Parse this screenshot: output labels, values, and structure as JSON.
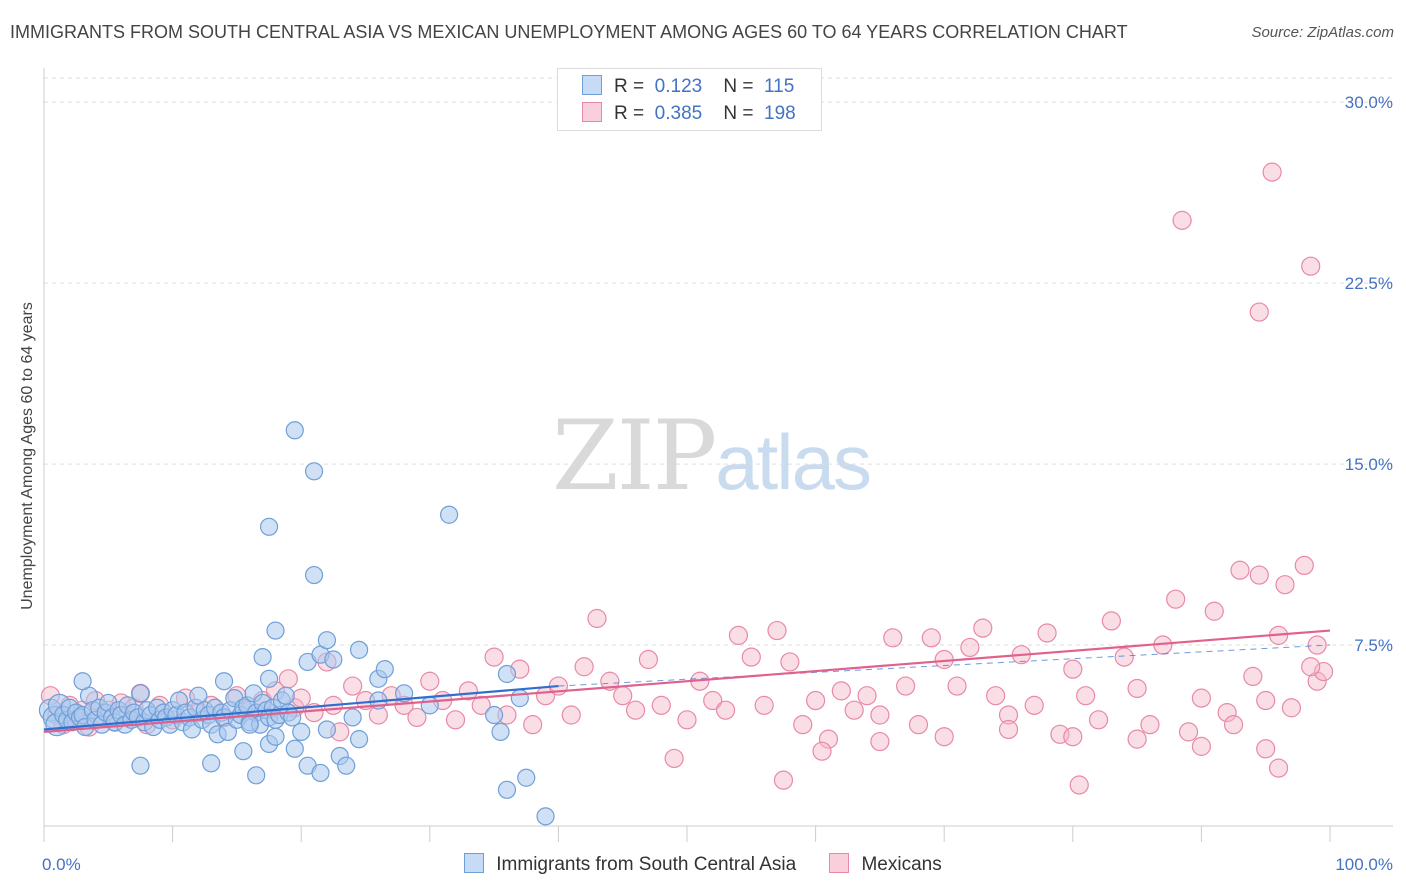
{
  "title": "IMMIGRANTS FROM SOUTH CENTRAL ASIA VS MEXICAN UNEMPLOYMENT AMONG AGES 60 TO 64 YEARS CORRELATION CHART",
  "source": "Source: ZipAtlas.com",
  "watermark": {
    "zip": "ZIP",
    "atlas": "atlas"
  },
  "legend": {
    "r_label": "R =",
    "n_label": "N =",
    "items": [
      {
        "name": "Immigrants from South Central Asia",
        "r": "0.123",
        "n": "115"
      },
      {
        "name": "Mexicans",
        "r": "0.385",
        "n": "198"
      }
    ]
  },
  "colors": {
    "blue_fill": "#a9c8ee",
    "blue_stroke": "#6f9fd8",
    "blue_line": "#2f6fd0",
    "pink_fill": "#f4b6c8",
    "pink_stroke": "#e889a8",
    "pink_line": "#e0628c",
    "tick_text": "#4472c4",
    "grid": "#dddddd"
  },
  "chart_data": {
    "type": "scatter",
    "ylabel": "Unemployment Among Ages 60 to 64 years",
    "xlabel": "",
    "xlim": [
      0,
      100
    ],
    "ylim": [
      0,
      31
    ],
    "x_tick_labels": [
      "0.0%",
      "100.0%"
    ],
    "y_ticks": [
      7.5,
      15.0,
      22.5,
      30.0
    ],
    "y_tick_labels": [
      "7.5%",
      "15.0%",
      "22.5%",
      "30.0%"
    ],
    "grid": true,
    "legend_position": "top-center",
    "series": [
      {
        "name": "Immigrants from South Central Asia",
        "trend": {
          "x": [
            0,
            40
          ],
          "y": [
            4.0,
            5.8
          ],
          "dashed_to": [
            100,
            7.5
          ]
        },
        "points": [
          [
            0.5,
            4.8
          ],
          [
            0.8,
            4.5
          ],
          [
            1.0,
            4.2
          ],
          [
            1.2,
            5.0
          ],
          [
            1.5,
            4.6
          ],
          [
            1.8,
            4.4
          ],
          [
            2.0,
            4.9
          ],
          [
            2.2,
            4.3
          ],
          [
            2.5,
            4.7
          ],
          [
            2.8,
            4.5
          ],
          [
            3.0,
            4.6
          ],
          [
            3.2,
            4.1
          ],
          [
            3.5,
            5.4
          ],
          [
            3.8,
            4.8
          ],
          [
            4.0,
            4.4
          ],
          [
            4.3,
            4.9
          ],
          [
            4.5,
            4.2
          ],
          [
            4.8,
            4.7
          ],
          [
            5.0,
            5.1
          ],
          [
            5.3,
            4.5
          ],
          [
            5.5,
            4.3
          ],
          [
            5.8,
            4.8
          ],
          [
            6.0,
            4.6
          ],
          [
            6.3,
            4.2
          ],
          [
            6.5,
            5.0
          ],
          [
            6.8,
            4.4
          ],
          [
            7.0,
            4.7
          ],
          [
            7.3,
            4.5
          ],
          [
            7.5,
            5.5
          ],
          [
            7.8,
            4.3
          ],
          [
            8.0,
            4.8
          ],
          [
            8.3,
            4.6
          ],
          [
            8.5,
            4.1
          ],
          [
            8.8,
            4.9
          ],
          [
            9.0,
            4.4
          ],
          [
            9.3,
            4.7
          ],
          [
            9.5,
            4.5
          ],
          [
            9.8,
            4.2
          ],
          [
            10.0,
            4.8
          ],
          [
            10.3,
            4.6
          ],
          [
            10.5,
            5.2
          ],
          [
            10.8,
            4.3
          ],
          [
            11.0,
            4.7
          ],
          [
            11.3,
            4.5
          ],
          [
            11.5,
            4.0
          ],
          [
            11.8,
            4.9
          ],
          [
            12.0,
            5.4
          ],
          [
            12.3,
            4.4
          ],
          [
            12.5,
            4.8
          ],
          [
            12.8,
            4.6
          ],
          [
            13.0,
            4.2
          ],
          [
            13.3,
            4.9
          ],
          [
            13.5,
            3.8
          ],
          [
            13.8,
            4.7
          ],
          [
            14.0,
            4.5
          ],
          [
            14.3,
            3.9
          ],
          [
            14.5,
            4.8
          ],
          [
            14.8,
            5.3
          ],
          [
            15.0,
            4.4
          ],
          [
            15.3,
            4.6
          ],
          [
            15.5,
            4.9
          ],
          [
            15.8,
            5.0
          ],
          [
            16.0,
            4.3
          ],
          [
            16.3,
            5.5
          ],
          [
            16.5,
            4.7
          ],
          [
            16.8,
            4.2
          ],
          [
            17.0,
            5.1
          ],
          [
            17.3,
            4.8
          ],
          [
            17.5,
            4.5
          ],
          [
            17.8,
            4.9
          ],
          [
            18.0,
            4.4
          ],
          [
            18.3,
            4.6
          ],
          [
            18.5,
            5.2
          ],
          [
            18.8,
            5.4
          ],
          [
            19.0,
            4.7
          ],
          [
            19.3,
            4.5
          ],
          [
            3.0,
            6.0
          ],
          [
            14.0,
            6.0
          ],
          [
            17.5,
            6.1
          ],
          [
            7.5,
            2.5
          ],
          [
            13.0,
            2.6
          ],
          [
            15.5,
            3.1
          ],
          [
            16.5,
            2.1
          ],
          [
            17.5,
            3.4
          ],
          [
            19.5,
            3.2
          ],
          [
            20.5,
            2.5
          ],
          [
            21.5,
            2.2
          ],
          [
            23.0,
            2.9
          ],
          [
            23.5,
            2.5
          ],
          [
            24.5,
            3.6
          ],
          [
            16.0,
            4.2
          ],
          [
            18.0,
            3.7
          ],
          [
            20.0,
            3.9
          ],
          [
            22.0,
            4.0
          ],
          [
            24.0,
            4.5
          ],
          [
            26.0,
            5.2
          ],
          [
            28.0,
            5.5
          ],
          [
            30.0,
            5.0
          ],
          [
            35.0,
            4.6
          ],
          [
            17.0,
            7.0
          ],
          [
            18.0,
            8.1
          ],
          [
            20.5,
            6.8
          ],
          [
            21.5,
            7.1
          ],
          [
            22.5,
            6.9
          ],
          [
            24.5,
            7.3
          ],
          [
            26.0,
            6.1
          ],
          [
            26.5,
            6.5
          ],
          [
            36.0,
            6.3
          ],
          [
            37.0,
            5.3
          ],
          [
            17.5,
            12.4
          ],
          [
            19.5,
            16.4
          ],
          [
            21.0,
            14.7
          ],
          [
            21.0,
            10.4
          ],
          [
            31.5,
            12.9
          ],
          [
            22.0,
            7.7
          ],
          [
            35.5,
            3.9
          ],
          [
            36.0,
            1.5
          ],
          [
            37.5,
            2.0
          ],
          [
            39.0,
            0.4
          ]
        ]
      },
      {
        "name": "Mexicans",
        "trend": {
          "x": [
            0,
            100
          ],
          "y": [
            3.9,
            8.1
          ]
        },
        "points": [
          [
            0.5,
            5.4
          ],
          [
            1.0,
            4.6
          ],
          [
            1.5,
            4.2
          ],
          [
            2.0,
            5.0
          ],
          [
            2.5,
            4.4
          ],
          [
            3.0,
            4.8
          ],
          [
            3.5,
            4.1
          ],
          [
            4.0,
            5.2
          ],
          [
            4.5,
            4.5
          ],
          [
            5.0,
            4.8
          ],
          [
            5.5,
            4.3
          ],
          [
            6.0,
            5.1
          ],
          [
            6.5,
            4.6
          ],
          [
            7.0,
            4.9
          ],
          [
            7.5,
            5.5
          ],
          [
            8.0,
            4.2
          ],
          [
            9.0,
            5.0
          ],
          [
            10.0,
            4.4
          ],
          [
            11.0,
            5.3
          ],
          [
            12.0,
            4.7
          ],
          [
            13.0,
            5.0
          ],
          [
            14.0,
            4.5
          ],
          [
            15.0,
            5.4
          ],
          [
            16.0,
            4.8
          ],
          [
            17.0,
            5.2
          ],
          [
            18.0,
            5.6
          ],
          [
            19.0,
            6.1
          ],
          [
            19.5,
            4.9
          ],
          [
            20.0,
            5.3
          ],
          [
            21.0,
            4.7
          ],
          [
            22.0,
            6.8
          ],
          [
            22.5,
            5.0
          ],
          [
            23.0,
            3.9
          ],
          [
            24.0,
            5.8
          ],
          [
            25.0,
            5.2
          ],
          [
            26.0,
            4.6
          ],
          [
            27.0,
            5.4
          ],
          [
            28.0,
            5.0
          ],
          [
            29.0,
            4.5
          ],
          [
            30.0,
            6.0
          ],
          [
            31.0,
            5.2
          ],
          [
            32.0,
            4.4
          ],
          [
            33.0,
            5.6
          ],
          [
            34.0,
            5.0
          ],
          [
            35.0,
            7.0
          ],
          [
            36.0,
            4.6
          ],
          [
            37.0,
            6.5
          ],
          [
            38.0,
            4.2
          ],
          [
            39.0,
            5.4
          ],
          [
            40.0,
            5.8
          ],
          [
            41.0,
            4.6
          ],
          [
            42.0,
            6.6
          ],
          [
            43.0,
            8.6
          ],
          [
            44.0,
            6.0
          ],
          [
            45.0,
            5.4
          ],
          [
            46.0,
            4.8
          ],
          [
            47.0,
            6.9
          ],
          [
            48.0,
            5.0
          ],
          [
            49.0,
            2.8
          ],
          [
            50.0,
            4.4
          ],
          [
            51.0,
            6.0
          ],
          [
            52.0,
            5.2
          ],
          [
            53.0,
            4.8
          ],
          [
            54.0,
            7.9
          ],
          [
            55.0,
            7.0
          ],
          [
            56.0,
            5.0
          ],
          [
            57.0,
            8.1
          ],
          [
            58.0,
            6.8
          ],
          [
            59.0,
            4.2
          ],
          [
            60.0,
            5.2
          ],
          [
            61.0,
            3.6
          ],
          [
            62.0,
            5.6
          ],
          [
            63.0,
            4.8
          ],
          [
            64.0,
            5.4
          ],
          [
            65.0,
            4.6
          ],
          [
            66.0,
            7.8
          ],
          [
            67.0,
            5.8
          ],
          [
            68.0,
            4.2
          ],
          [
            69.0,
            7.8
          ],
          [
            70.0,
            6.9
          ],
          [
            71.0,
            5.8
          ],
          [
            72.0,
            7.4
          ],
          [
            73.0,
            8.2
          ],
          [
            74.0,
            5.4
          ],
          [
            75.0,
            4.6
          ],
          [
            76.0,
            7.1
          ],
          [
            77.0,
            5.0
          ],
          [
            78.0,
            8.0
          ],
          [
            79.0,
            3.8
          ],
          [
            80.0,
            6.5
          ],
          [
            81.0,
            5.4
          ],
          [
            82.0,
            4.4
          ],
          [
            83.0,
            8.5
          ],
          [
            84.0,
            7.0
          ],
          [
            85.0,
            5.7
          ],
          [
            86.0,
            4.2
          ],
          [
            87.0,
            7.5
          ],
          [
            88.0,
            9.4
          ],
          [
            89.0,
            3.9
          ],
          [
            90.0,
            5.3
          ],
          [
            91.0,
            8.9
          ],
          [
            92.0,
            4.7
          ],
          [
            93.0,
            10.6
          ],
          [
            94.0,
            6.2
          ],
          [
            95.0,
            5.2
          ],
          [
            96.0,
            7.9
          ],
          [
            97.0,
            4.9
          ],
          [
            98.0,
            10.8
          ],
          [
            99.0,
            6.0
          ],
          [
            99.5,
            6.4
          ],
          [
            60.5,
            3.1
          ],
          [
            65.0,
            3.5
          ],
          [
            70.0,
            3.7
          ],
          [
            75.0,
            4.0
          ],
          [
            80.0,
            3.7
          ],
          [
            85.0,
            3.6
          ],
          [
            90.0,
            3.3
          ],
          [
            92.5,
            4.2
          ],
          [
            95.0,
            3.2
          ],
          [
            57.5,
            1.9
          ],
          [
            80.5,
            1.7
          ],
          [
            96.0,
            2.4
          ],
          [
            98.5,
            6.6
          ],
          [
            96.5,
            10.0
          ],
          [
            94.5,
            10.4
          ],
          [
            99.0,
            7.5
          ],
          [
            95.5,
            27.1
          ],
          [
            88.5,
            25.1
          ],
          [
            98.5,
            23.2
          ],
          [
            94.5,
            21.3
          ]
        ]
      }
    ]
  }
}
